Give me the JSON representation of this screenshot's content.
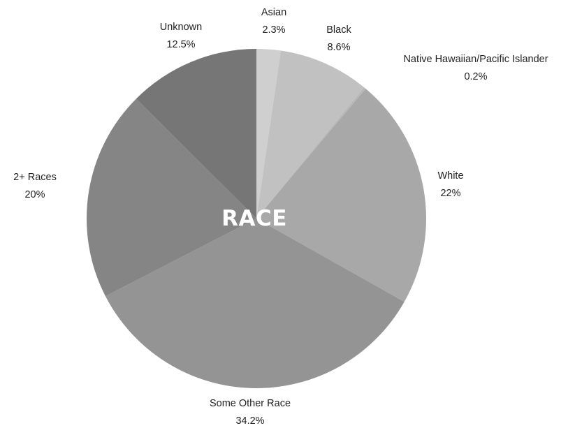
{
  "chart_data": {
    "type": "pie",
    "center_label": "RACE",
    "grid": false,
    "legend": "none",
    "slices": [
      {
        "label": "Asian",
        "value_text": "2.3%",
        "value": 2.3,
        "color": "#cfcfcf"
      },
      {
        "label": "Black",
        "value_text": "8.6%",
        "value": 8.6,
        "color": "#c1c1c1"
      },
      {
        "label": "Native Hawaiian/Pacific Islander",
        "value_text": "0.2%",
        "value": 0.2,
        "color": "#b8b8b8"
      },
      {
        "label": "White",
        "value_text": "22%",
        "value": 22,
        "color": "#a8a8a8"
      },
      {
        "label": "Some Other Race",
        "value_text": "34.2%",
        "value": 34.2,
        "color": "#949494"
      },
      {
        "label": "2+ Races",
        "value_text": "20%",
        "value": 20,
        "color": "#858585"
      },
      {
        "label": "Unknown",
        "value_text": "12.5%",
        "value": 12.5,
        "color": "#767676"
      }
    ]
  }
}
